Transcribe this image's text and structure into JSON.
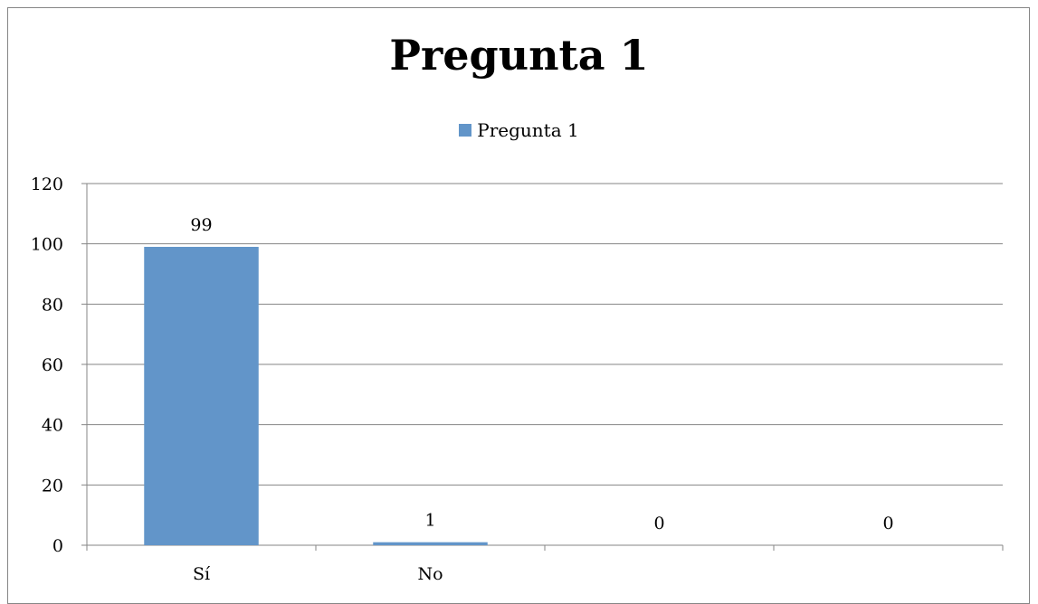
{
  "chart_data": {
    "type": "bar",
    "title": "Pregunta 1",
    "categories": [
      "Sí",
      "No",
      "",
      ""
    ],
    "series": [
      {
        "name": "Pregunta 1",
        "values": [
          99,
          1,
          0,
          0
        ],
        "color": "#6295c9"
      }
    ],
    "data_labels": [
      "99",
      "1",
      "0",
      "0"
    ],
    "ylim": [
      0,
      120
    ],
    "yticks": [
      0,
      20,
      40,
      60,
      80,
      100,
      120
    ],
    "grid": true,
    "legend": "top"
  }
}
